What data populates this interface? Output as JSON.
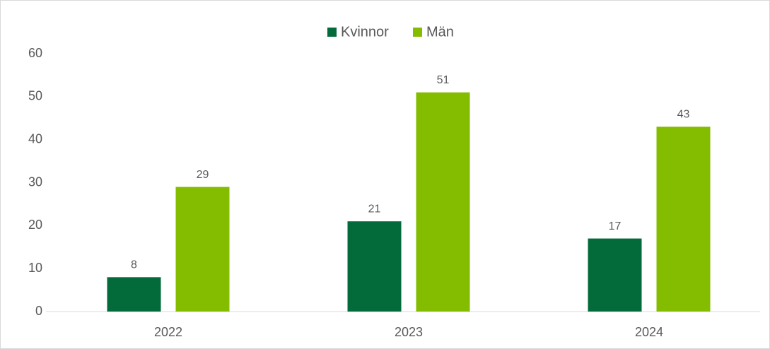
{
  "chart_data": {
    "type": "bar",
    "categories": [
      "2022",
      "2023",
      "2024"
    ],
    "series": [
      {
        "name": "Kvinnor",
        "color": "#036b3a",
        "values": [
          8,
          21,
          17
        ]
      },
      {
        "name": "Män",
        "color": "#84bd00",
        "values": [
          29,
          51,
          43
        ]
      }
    ],
    "ylim": [
      0,
      60
    ],
    "yticks": [
      0,
      10,
      20,
      30,
      40,
      50,
      60
    ],
    "grid": false,
    "legend": "top"
  }
}
